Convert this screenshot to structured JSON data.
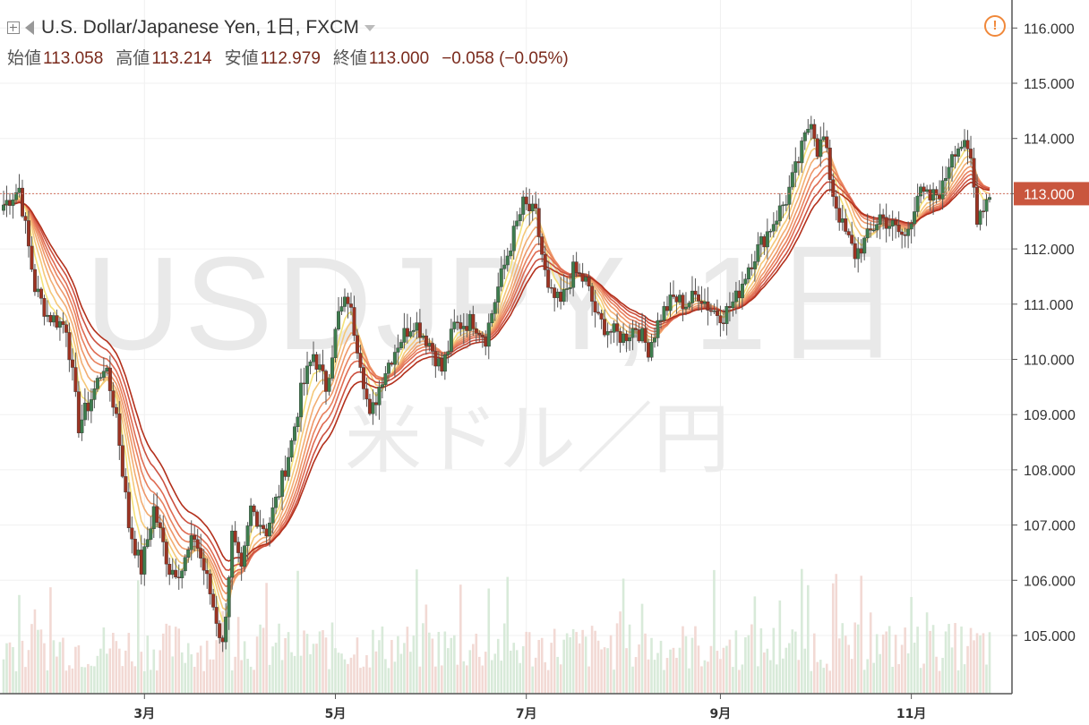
{
  "header": {
    "symbol_title": "U.S. Dollar/Japanese Yen, 1日, FXCM"
  },
  "ohlc": {
    "open_label": "始値",
    "open": "113.058",
    "high_label": "高値",
    "high": "113.214",
    "low_label": "安値",
    "low": "112.979",
    "close_label": "終値",
    "close": "113.000",
    "change": "−0.058 (−0.05%)"
  },
  "watermark": {
    "symbol": "USDJPY, 1日",
    "name": "米ドル／円"
  },
  "icons": {
    "expand": "plus-box-icon",
    "flag": "flag-icon",
    "dropdown": "caret-down-icon",
    "alert": "exclamation-circle-icon"
  },
  "colors": {
    "up": "#3e7d4e",
    "down": "#b33a25",
    "ribbon_fast": "#f5e27a",
    "ribbon_slow": "#b3301c",
    "last_price_tag": "#c9563e"
  },
  "chart_data": {
    "type": "candlestick",
    "title": "U.S. Dollar/Japanese Yen, 1日, FXCM",
    "yaxis_ticks": [
      "105.000",
      "106.000",
      "107.000",
      "108.000",
      "109.000",
      "110.000",
      "111.000",
      "112.000",
      "113.000",
      "114.000",
      "115.000",
      "116.000"
    ],
    "ylim": [
      104.0,
      116.4
    ],
    "xaxis_ticks": [
      {
        "label": "3月",
        "day": 45
      },
      {
        "label": "5月",
        "day": 106
      },
      {
        "label": "7月",
        "day": 167
      },
      {
        "label": "9月",
        "day": 229
      },
      {
        "label": "11月",
        "day": 290
      }
    ],
    "last_price": "113.000",
    "anchors": [
      [
        0,
        112.8
      ],
      [
        5,
        113.1
      ],
      [
        10,
        111.3
      ],
      [
        14,
        110.8
      ],
      [
        20,
        110.6
      ],
      [
        24,
        108.8
      ],
      [
        28,
        109.3
      ],
      [
        32,
        109.9
      ],
      [
        36,
        109.0
      ],
      [
        40,
        107.0
      ],
      [
        44,
        106.2
      ],
      [
        48,
        107.3
      ],
      [
        53,
        106.2
      ],
      [
        57,
        106.2
      ],
      [
        61,
        106.8
      ],
      [
        65,
        106.0
      ],
      [
        68,
        105.3
      ],
      [
        70,
        104.8
      ],
      [
        73,
        106.8
      ],
      [
        76,
        106.1
      ],
      [
        79,
        107.3
      ],
      [
        84,
        106.9
      ],
      [
        88,
        107.6
      ],
      [
        92,
        108.5
      ],
      [
        95,
        109.4
      ],
      [
        99,
        110.1
      ],
      [
        103,
        109.5
      ],
      [
        107,
        110.8
      ],
      [
        110,
        111.1
      ],
      [
        114,
        110.0
      ],
      [
        117,
        108.9
      ],
      [
        121,
        109.7
      ],
      [
        126,
        110.3
      ],
      [
        131,
        110.7
      ],
      [
        136,
        110.3
      ],
      [
        140,
        109.8
      ],
      [
        144,
        110.6
      ],
      [
        150,
        110.7
      ],
      [
        154,
        110.4
      ],
      [
        158,
        111.3
      ],
      [
        162,
        112.1
      ],
      [
        166,
        112.8
      ],
      [
        170,
        112.6
      ],
      [
        174,
        111.2
      ],
      [
        178,
        111.0
      ],
      [
        182,
        111.6
      ],
      [
        186,
        111.4
      ],
      [
        190,
        110.7
      ],
      [
        194,
        110.5
      ],
      [
        198,
        110.4
      ],
      [
        202,
        110.6
      ],
      [
        206,
        110.2
      ],
      [
        210,
        110.8
      ],
      [
        214,
        111.1
      ],
      [
        218,
        111.0
      ],
      [
        222,
        111.2
      ],
      [
        226,
        110.9
      ],
      [
        230,
        110.8
      ],
      [
        234,
        111.1
      ],
      [
        238,
        111.7
      ],
      [
        242,
        112.1
      ],
      [
        246,
        112.5
      ],
      [
        250,
        112.9
      ],
      [
        254,
        113.6
      ],
      [
        258,
        114.4
      ],
      [
        260,
        113.8
      ],
      [
        262,
        114.0
      ],
      [
        265,
        113.0
      ],
      [
        268,
        112.4
      ],
      [
        272,
        111.9
      ],
      [
        276,
        112.2
      ],
      [
        280,
        112.6
      ],
      [
        284,
        112.4
      ],
      [
        288,
        112.2
      ],
      [
        292,
        113.0
      ],
      [
        296,
        112.9
      ],
      [
        300,
        113.1
      ],
      [
        303,
        113.8
      ],
      [
        306,
        113.9
      ],
      [
        309,
        113.6
      ],
      [
        311,
        112.6
      ],
      [
        313,
        112.8
      ],
      [
        315,
        113.0
      ]
    ],
    "ribbon_ma_periods": [
      5,
      8,
      11,
      14,
      17,
      20,
      24,
      28
    ],
    "volume_shown": true,
    "grid": true
  }
}
